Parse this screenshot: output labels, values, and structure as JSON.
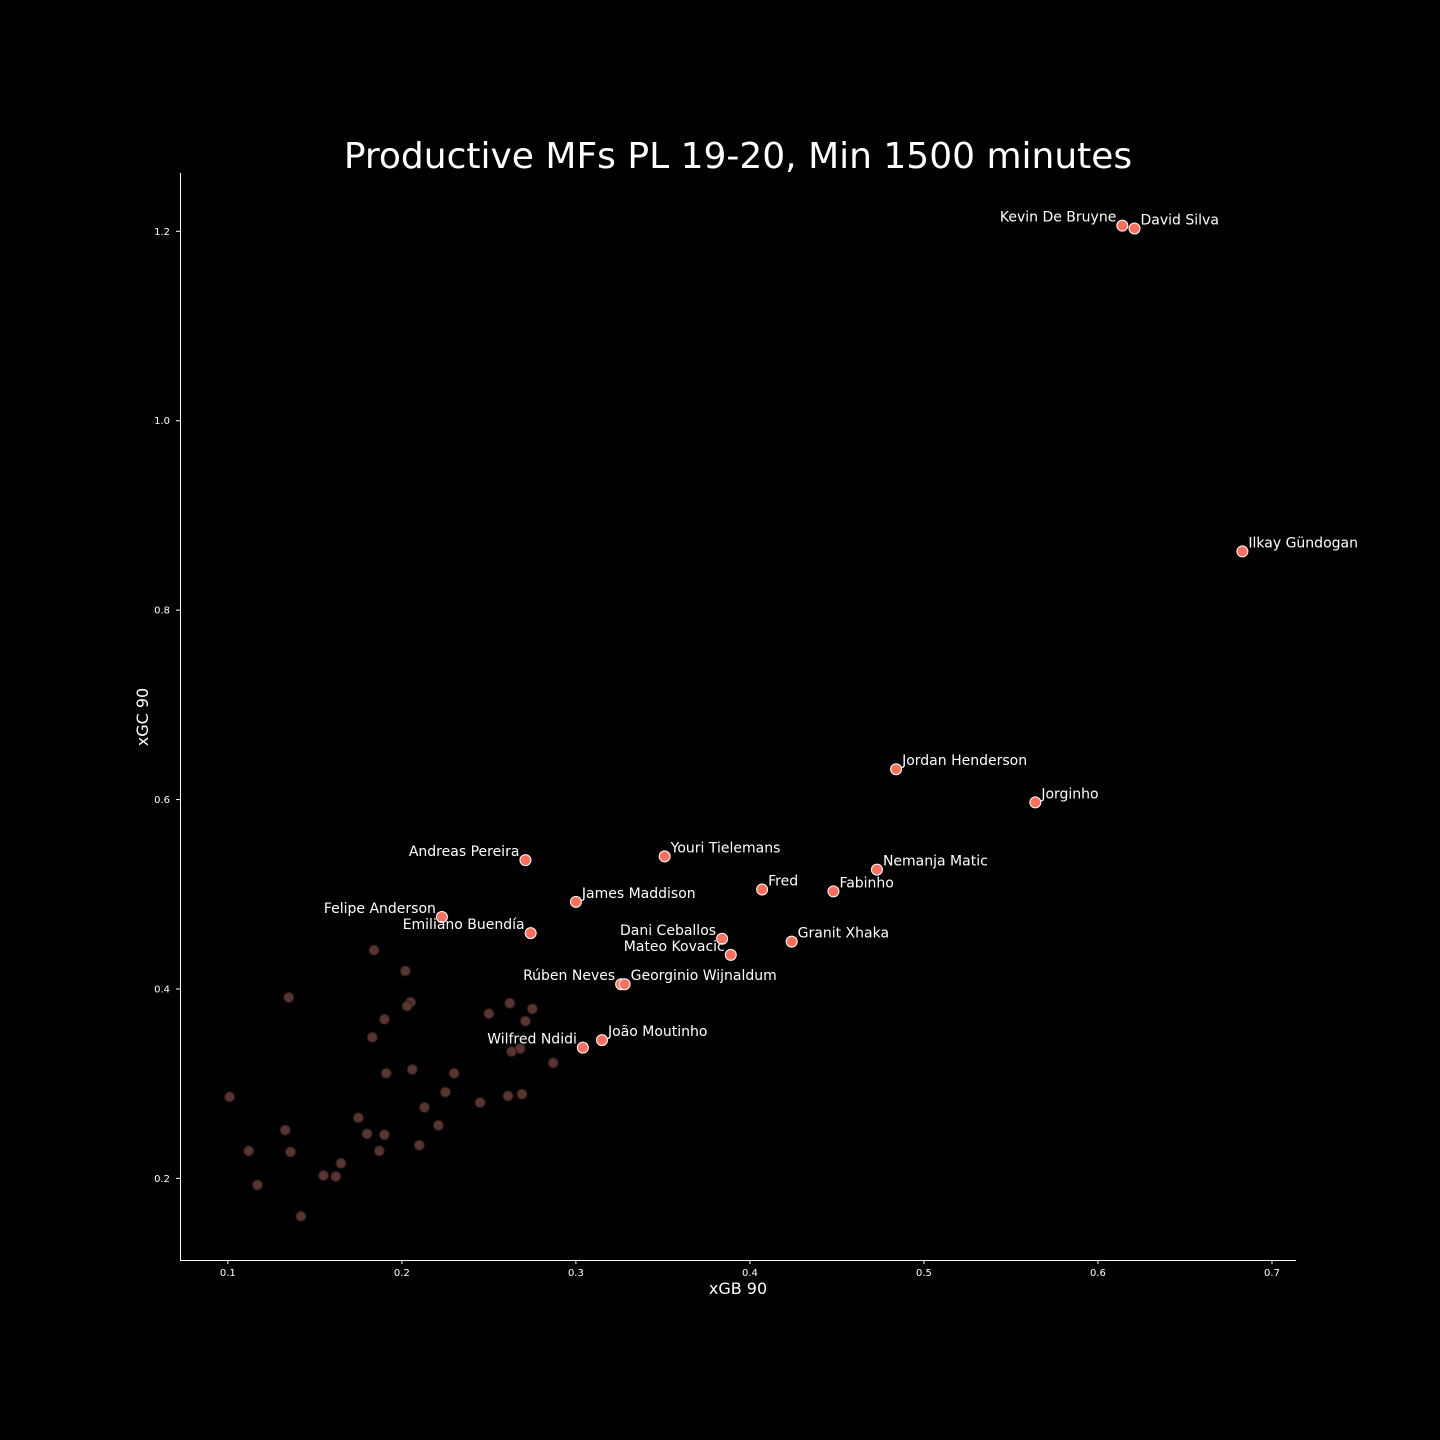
{
  "chart_data": {
    "type": "scatter",
    "title": "Productive MFs PL 19-20, Min 1500 minutes",
    "xlabel": "xGB 90",
    "ylabel": "xGC 90",
    "xlim": [
      0.0725,
      0.7138
    ],
    "ylim": [
      0.1138,
      1.2616
    ],
    "xticks": [
      0.1,
      0.2,
      0.3,
      0.4,
      0.5,
      0.6,
      0.7
    ],
    "yticks": [
      0.2,
      0.4,
      0.6,
      0.8,
      1.0,
      1.2
    ],
    "xtick_labels": [
      "0.1",
      "0.2",
      "0.3",
      "0.4",
      "0.5",
      "0.6",
      "0.7"
    ],
    "ytick_labels": [
      "0.2",
      "0.4",
      "0.6",
      "0.8",
      "1.0",
      "1.2"
    ],
    "grid": false,
    "colors": {
      "background": "#000000",
      "highlight": "#ff6f5e",
      "highlight_edge": "#ffffff",
      "muted": "#5a3530",
      "muted_edge": "#2a1a18",
      "text": "#ffffff"
    },
    "highlighted": [
      {
        "name": "Kevin De Bruyne",
        "x": 0.614,
        "y": 1.206,
        "label_side": "left",
        "label_dy": -4
      },
      {
        "name": "David Silva",
        "x": 0.621,
        "y": 1.203,
        "label_side": "right",
        "label_dy": -4
      },
      {
        "name": "Ilkay Gündogan",
        "x": 0.683,
        "y": 0.862,
        "label_side": "right",
        "label_dy": -4
      },
      {
        "name": "Jordan Henderson",
        "x": 0.484,
        "y": 0.632,
        "label_side": "right",
        "label_dy": -4
      },
      {
        "name": "Jorginho",
        "x": 0.564,
        "y": 0.597,
        "label_side": "right",
        "label_dy": -4
      },
      {
        "name": "Andreas Pereira",
        "x": 0.271,
        "y": 0.536,
        "label_side": "left",
        "label_dy": -4
      },
      {
        "name": "Youri Tielemans",
        "x": 0.351,
        "y": 0.54,
        "label_side": "right",
        "label_dy": -4
      },
      {
        "name": "Nemanja Matic",
        "x": 0.473,
        "y": 0.526,
        "label_side": "right",
        "label_dy": -4
      },
      {
        "name": "Fred",
        "x": 0.407,
        "y": 0.505,
        "label_side": "right",
        "label_dy": -4
      },
      {
        "name": "Fabinho",
        "x": 0.448,
        "y": 0.503,
        "label_side": "right",
        "label_dy": -4
      },
      {
        "name": "James Maddison",
        "x": 0.3,
        "y": 0.492,
        "label_side": "right",
        "label_dy": -4
      },
      {
        "name": "Felipe Anderson",
        "x": 0.223,
        "y": 0.476,
        "label_side": "left",
        "label_dy": -4
      },
      {
        "name": "Emiliano Buendía",
        "x": 0.274,
        "y": 0.459,
        "label_side": "left",
        "label_dy": -4
      },
      {
        "name": "Dani Ceballos",
        "x": 0.384,
        "y": 0.453,
        "label_side": "left",
        "label_dy": -4
      },
      {
        "name": "Granit Xhaka",
        "x": 0.424,
        "y": 0.45,
        "label_side": "right",
        "label_dy": -4
      },
      {
        "name": "Mateo Kovacic",
        "x": 0.389,
        "y": 0.436,
        "label_side": "left",
        "label_dy": -4
      },
      {
        "name": "Rúben Neves",
        "x": 0.326,
        "y": 0.405,
        "label_side": "left",
        "label_dy": -4
      },
      {
        "name": "Georginio Wijnaldum",
        "x": 0.328,
        "y": 0.405,
        "label_side": "right",
        "label_dy": -4
      },
      {
        "name": "João Moutinho",
        "x": 0.315,
        "y": 0.346,
        "label_side": "right",
        "label_dy": -4
      },
      {
        "name": "Wilfred Ndidi",
        "x": 0.304,
        "y": 0.338,
        "label_side": "left",
        "label_dy": -4
      }
    ],
    "others": [
      {
        "x": 0.184,
        "y": 0.441
      },
      {
        "x": 0.202,
        "y": 0.419
      },
      {
        "x": 0.135,
        "y": 0.391
      },
      {
        "x": 0.205,
        "y": 0.386
      },
      {
        "x": 0.203,
        "y": 0.382
      },
      {
        "x": 0.262,
        "y": 0.385
      },
      {
        "x": 0.275,
        "y": 0.379
      },
      {
        "x": 0.25,
        "y": 0.374
      },
      {
        "x": 0.19,
        "y": 0.368
      },
      {
        "x": 0.271,
        "y": 0.366
      },
      {
        "x": 0.183,
        "y": 0.349
      },
      {
        "x": 0.268,
        "y": 0.337
      },
      {
        "x": 0.263,
        "y": 0.334
      },
      {
        "x": 0.287,
        "y": 0.322
      },
      {
        "x": 0.206,
        "y": 0.315
      },
      {
        "x": 0.191,
        "y": 0.311
      },
      {
        "x": 0.23,
        "y": 0.311
      },
      {
        "x": 0.225,
        "y": 0.291
      },
      {
        "x": 0.269,
        "y": 0.289
      },
      {
        "x": 0.261,
        "y": 0.287
      },
      {
        "x": 0.101,
        "y": 0.286
      },
      {
        "x": 0.245,
        "y": 0.28
      },
      {
        "x": 0.213,
        "y": 0.275
      },
      {
        "x": 0.175,
        "y": 0.264
      },
      {
        "x": 0.221,
        "y": 0.256
      },
      {
        "x": 0.133,
        "y": 0.251
      },
      {
        "x": 0.18,
        "y": 0.247
      },
      {
        "x": 0.19,
        "y": 0.246
      },
      {
        "x": 0.21,
        "y": 0.235
      },
      {
        "x": 0.112,
        "y": 0.229
      },
      {
        "x": 0.136,
        "y": 0.228
      },
      {
        "x": 0.187,
        "y": 0.229
      },
      {
        "x": 0.165,
        "y": 0.216
      },
      {
        "x": 0.155,
        "y": 0.203
      },
      {
        "x": 0.162,
        "y": 0.202
      },
      {
        "x": 0.117,
        "y": 0.193
      },
      {
        "x": 0.142,
        "y": 0.16
      }
    ]
  }
}
